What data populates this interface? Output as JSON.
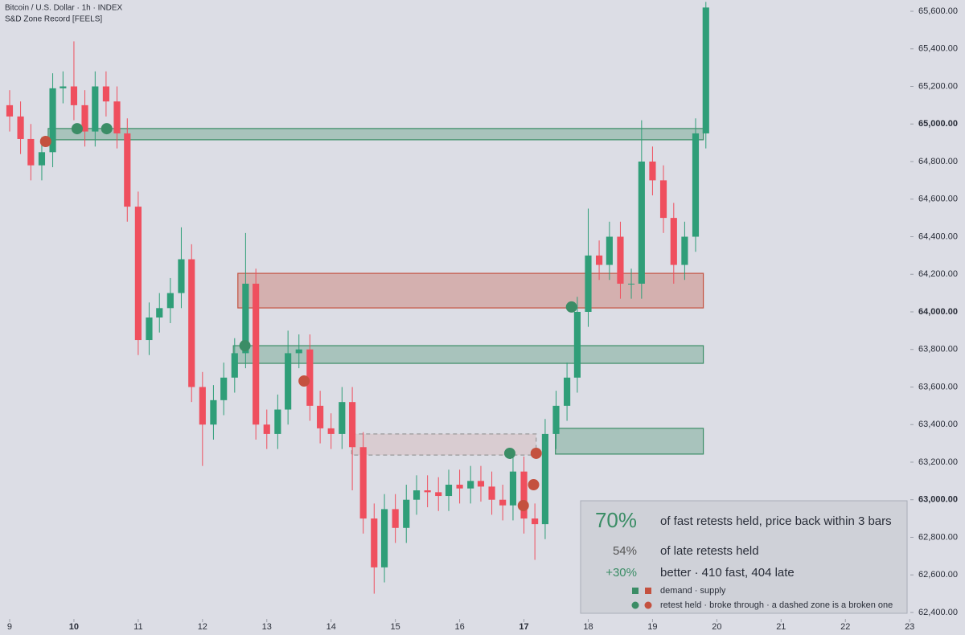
{
  "chart_data": {
    "type": "candlestick",
    "title": "Bitcoin / U.S. Dollar · 1h · INDEX",
    "subtitle": "S&D Zone Record [FEELS]",
    "x": [
      9,
      9.17,
      9.33,
      9.5,
      9.67,
      9.83,
      10,
      10.17,
      10.33,
      10.5,
      10.67,
      10.83,
      11,
      11.17,
      11.33,
      11.5,
      11.67,
      11.83,
      12,
      12.17,
      12.33,
      12.5,
      12.67,
      12.83,
      13,
      13.17,
      13.33,
      13.5,
      13.67,
      13.83,
      14,
      14.17,
      14.33,
      14.5,
      14.67,
      14.83,
      15,
      15.17,
      15.33,
      15.5,
      15.67,
      15.83,
      16,
      16.17,
      16.33,
      16.5,
      16.67,
      16.83,
      17,
      17.17,
      17.33,
      17.5,
      17.67,
      17.83,
      18,
      18.17,
      18.33,
      18.5,
      18.67,
      18.83,
      19,
      19.17,
      19.33,
      19.5,
      19.67,
      19.83
    ],
    "open": [
      65100,
      65040,
      64920,
      64780,
      64850,
      65190,
      65200,
      65100,
      64960,
      65200,
      65120,
      64950,
      64560,
      63850,
      63970,
      64020,
      64100,
      64280,
      63600,
      63400,
      63530,
      63650,
      63780,
      64150,
      63400,
      63350,
      63480,
      63780,
      63800,
      63500,
      63380,
      63350,
      63520,
      63280,
      62900,
      62640,
      62950,
      62850,
      63000,
      63050,
      63040,
      63020,
      63080,
      63060,
      63100,
      63070,
      63000,
      62970,
      63150,
      62900,
      62870,
      63350,
      63500,
      63650,
      64000,
      64300,
      64250,
      64400,
      64150,
      64150,
      64800,
      64700,
      64500,
      64250,
      64400,
      64950
    ],
    "high": [
      65180,
      65120,
      65000,
      64930,
      65270,
      65280,
      65440,
      65180,
      65280,
      65280,
      65200,
      65030,
      64640,
      64050,
      64100,
      64180,
      64450,
      64360,
      63680,
      63610,
      63730,
      63860,
      64420,
      64230,
      63480,
      63560,
      63900,
      63880,
      63880,
      63580,
      63460,
      63600,
      63600,
      63360,
      62980,
      63030,
      63030,
      63080,
      63130,
      63130,
      63120,
      63160,
      63160,
      63180,
      63180,
      63150,
      63080,
      63250,
      63230,
      62980,
      63430,
      63580,
      63730,
      64080,
      64550,
      64380,
      64480,
      64480,
      64230,
      65020,
      64880,
      64780,
      64580,
      64480,
      65030,
      65650
    ],
    "low": [
      64960,
      64840,
      64700,
      64700,
      64770,
      65110,
      65020,
      64880,
      64880,
      65040,
      64870,
      64480,
      63770,
      63770,
      63890,
      63940,
      64020,
      63520,
      63180,
      63320,
      63450,
      63570,
      63700,
      63320,
      63270,
      63270,
      63400,
      63700,
      63420,
      63300,
      63270,
      63270,
      63050,
      62820,
      62500,
      62560,
      62770,
      62770,
      62920,
      62960,
      62940,
      62940,
      62980,
      62980,
      62990,
      62920,
      62890,
      62890,
      62820,
      62680,
      62790,
      63270,
      63420,
      63570,
      63920,
      64170,
      64170,
      64070,
      64070,
      64070,
      64620,
      64420,
      64150,
      64170,
      64320,
      64870
    ],
    "close": [
      65040,
      64920,
      64780,
      64850,
      65190,
      65200,
      65100,
      64960,
      65200,
      65120,
      64950,
      64560,
      63850,
      63970,
      64020,
      64100,
      64280,
      63600,
      63400,
      63530,
      63650,
      63780,
      64150,
      63400,
      63350,
      63480,
      63780,
      63800,
      63500,
      63380,
      63350,
      63520,
      63280,
      62900,
      62640,
      62950,
      62850,
      63000,
      63050,
      63040,
      63020,
      63080,
      63060,
      63100,
      63070,
      63000,
      62970,
      63150,
      62900,
      62870,
      63350,
      63500,
      63650,
      64000,
      64300,
      64250,
      64400,
      64150,
      64150,
      64800,
      64700,
      64500,
      64250,
      64400,
      64950,
      65620
    ],
    "xlim": [
      8.85,
      23.01
    ],
    "ylim": [
      62280,
      65660
    ],
    "xticks": [
      9,
      10,
      11,
      12,
      13,
      14,
      15,
      16,
      17,
      18,
      19,
      20,
      21,
      22,
      23
    ],
    "bold_xticks": [
      10,
      17
    ],
    "yticks": [
      {
        "value": 62400,
        "label": "62,400.00"
      },
      {
        "value": 62600,
        "label": "62,600.00"
      },
      {
        "value": 62800,
        "label": "62,800.00"
      },
      {
        "value": 63000,
        "label": "63,000.00"
      },
      {
        "value": 63200,
        "label": "63,200.00"
      },
      {
        "value": 63400,
        "label": "63,400.00"
      },
      {
        "value": 63600,
        "label": "63,600.00"
      },
      {
        "value": 63800,
        "label": "63,800.00"
      },
      {
        "value": 64000,
        "label": "64,000.00"
      },
      {
        "value": 64200,
        "label": "64,200.00"
      },
      {
        "value": 64400,
        "label": "64,400.00"
      },
      {
        "value": 64600,
        "label": "64,600.00"
      },
      {
        "value": 64800,
        "label": "64,800.00"
      },
      {
        "value": 65000,
        "label": "65,000.00"
      },
      {
        "value": 65200,
        "label": "65,200.00"
      },
      {
        "value": 65400,
        "label": "65,400.00"
      },
      {
        "value": 65600,
        "label": "65,600.00"
      }
    ],
    "bold_yticks": [
      63000,
      64000,
      65000
    ],
    "colors": {
      "up": "#2f9e78",
      "down": "#ef4f5e",
      "demand": "#3b8d66",
      "supply": "#c4513f",
      "held": "#3b8d66",
      "broke": "#c4513f"
    },
    "zones": [
      {
        "kind": "demand",
        "x": [
          9.6,
          19.79
        ],
        "price": [
          64916,
          64976
        ],
        "broken": false
      },
      {
        "kind": "supply",
        "x": [
          12.55,
          19.79
        ],
        "price": [
          64021,
          64205
        ],
        "broken": false
      },
      {
        "kind": "demand",
        "x": [
          12.48,
          19.79
        ],
        "price": [
          63726,
          63820
        ],
        "broken": false
      },
      {
        "kind": "demand",
        "x": [
          17.49,
          19.79
        ],
        "price": [
          63243,
          63380
        ],
        "broken": false
      },
      {
        "kind": "supply",
        "x": [
          14.32,
          17.19
        ],
        "price": [
          63238,
          63350
        ],
        "broken": true
      }
    ],
    "retests": [
      {
        "x": 9.56,
        "price": 64907,
        "held": false
      },
      {
        "x": 10.05,
        "price": 64975,
        "held": true
      },
      {
        "x": 10.51,
        "price": 64975,
        "held": true
      },
      {
        "x": 12.66,
        "price": 63820,
        "held": true
      },
      {
        "x": 13.58,
        "price": 63632,
        "held": false
      },
      {
        "x": 16.78,
        "price": 63247,
        "held": true
      },
      {
        "x": 17.19,
        "price": 63247,
        "held": false
      },
      {
        "x": 17.15,
        "price": 63080,
        "held": false
      },
      {
        "x": 16.99,
        "price": 62969,
        "held": false
      },
      {
        "x": 17.74,
        "price": 64026,
        "held": true
      }
    ],
    "stats": [
      {
        "value": "70%",
        "label": "of fast retests held, price back within 3 bars"
      },
      {
        "value": "54%",
        "label": "of late retests held"
      },
      {
        "value": "+30%",
        "label": "better · 410 fast, 404 late"
      }
    ],
    "legend": [
      "demand · supply",
      "retest held · broke through · a dashed zone is a broken one"
    ]
  }
}
